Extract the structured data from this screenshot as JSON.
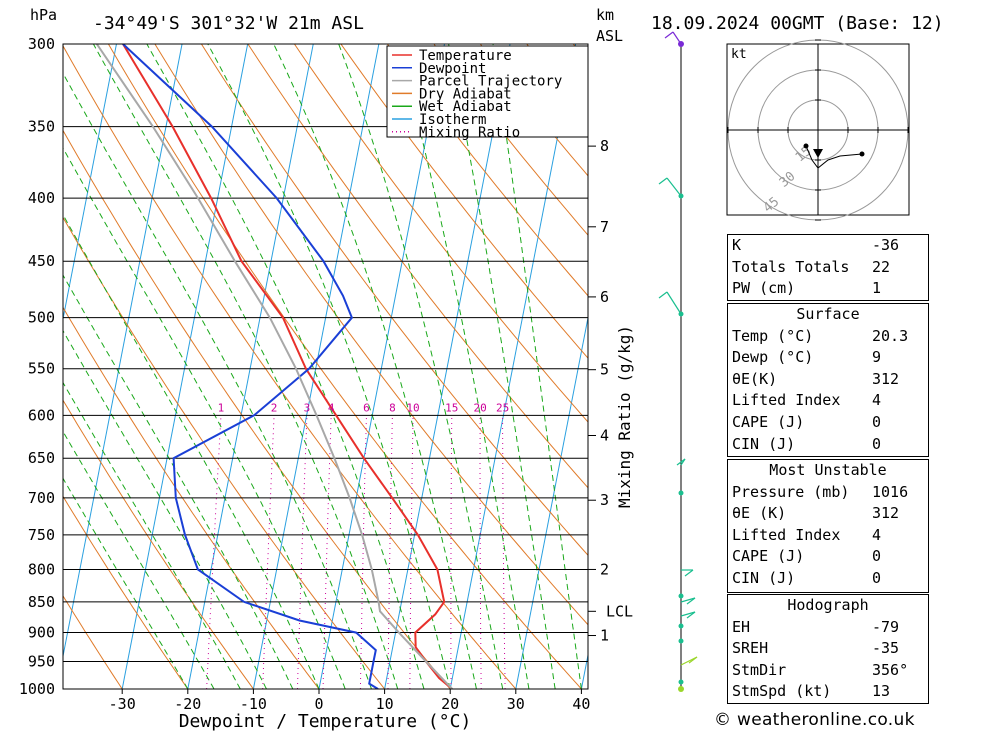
{
  "header": {
    "hpa_label": "hPa",
    "location": "-34°49'S 301°32'W 21m ASL",
    "km_label": "km",
    "asl_label": "ASL",
    "datetime": "18.09.2024 00GMT (Base: 12)"
  },
  "chart_data": {
    "type": "skew-t log-p",
    "xlabel": "Dewpoint / Temperature (°C)",
    "ylabel_left": "hPa",
    "ylabel_right": "Mixing Ratio (g/kg)",
    "pressure_levels": [
      300,
      350,
      400,
      450,
      500,
      550,
      600,
      650,
      700,
      750,
      800,
      850,
      900,
      950,
      1000
    ],
    "temperature_ticks": [
      -30,
      -20,
      -10,
      0,
      10,
      20,
      30,
      40
    ],
    "altitude_ticks_km": [
      {
        "label": "8",
        "p": 363
      },
      {
        "label": "7",
        "p": 422
      },
      {
        "label": "6",
        "p": 481
      },
      {
        "label": "5",
        "p": 551
      },
      {
        "label": "4",
        "p": 623
      },
      {
        "label": "3",
        "p": 703
      },
      {
        "label": "2",
        "p": 800
      },
      {
        "label": "LCL",
        "p": 865
      },
      {
        "label": "1",
        "p": 905
      }
    ],
    "mixing_ratio_labels": [
      "1",
      "2",
      "3",
      "4",
      "6",
      "8",
      "10",
      "15",
      "20",
      "25"
    ],
    "legend": [
      {
        "name": "Temperature",
        "color": "#e8302b",
        "style": "solid"
      },
      {
        "name": "Dewpoint",
        "color": "#1a3fd6",
        "style": "solid"
      },
      {
        "name": "Parcel Trajectory",
        "color": "#a8a8a8",
        "style": "solid"
      },
      {
        "name": "Dry Adiabat",
        "color": "#e07b2a",
        "style": "solid"
      },
      {
        "name": "Wet Adiabat",
        "color": "#1aa81a",
        "style": "solid"
      },
      {
        "name": "Isotherm",
        "color": "#2aa0e0",
        "style": "solid"
      },
      {
        "name": "Mixing Ratio",
        "color": "#cc0099",
        "style": "dotted"
      }
    ],
    "series": [
      {
        "name": "Temperature",
        "p": [
          1000,
          980,
          950,
          925,
          900,
          870,
          850,
          800,
          750,
          700,
          650,
          600,
          550,
          500,
          450,
          400,
          350,
          300
        ],
        "t": [
          20.3,
          18.0,
          15.5,
          13.5,
          13.0,
          15.5,
          16.5,
          14.5,
          10.5,
          5.5,
          0.0,
          -5.5,
          -11.5,
          -16.5,
          -24.5,
          -31.0,
          -39.0,
          -49.0
        ]
      },
      {
        "name": "Dewpoint",
        "p": [
          1000,
          990,
          975,
          950,
          930,
          900,
          880,
          850,
          800,
          750,
          700,
          650,
          600,
          550,
          500,
          480,
          450,
          400,
          350,
          300
        ],
        "t": [
          9.0,
          7.5,
          7.5,
          7.5,
          7.5,
          4.0,
          -5.0,
          -14.0,
          -22.0,
          -25.0,
          -27.5,
          -29.0,
          -18.0,
          -11.0,
          -6.0,
          -8.0,
          -12.0,
          -21.0,
          -33.0,
          -49.0
        ]
      },
      {
        "name": "Parcel Trajectory",
        "p": [
          1000,
          950,
          900,
          865,
          850,
          800,
          750,
          700,
          650,
          600,
          550,
          500,
          450,
          400,
          350,
          300
        ],
        "t": [
          20.3,
          15.5,
          10.5,
          7.0,
          6.5,
          4.5,
          2.0,
          -1.0,
          -4.5,
          -8.5,
          -13.0,
          -18.5,
          -25.5,
          -33.0,
          -42.0,
          -53.0
        ]
      }
    ],
    "hodograph": {
      "unit_label": "kt",
      "ring_labels": [
        "15",
        "30",
        "45"
      ]
    }
  },
  "indices": {
    "k": {
      "label": "K",
      "value": "-36"
    },
    "tt": {
      "label": "Totals Totals",
      "value": "22"
    },
    "pw": {
      "label": "PW (cm)",
      "value": "1"
    }
  },
  "surface": {
    "title": "Surface",
    "temp": {
      "label": "Temp (°C)",
      "value": "20.3"
    },
    "dewp": {
      "label": "Dewp (°C)",
      "value": "9"
    },
    "thetae": {
      "label": "θE(K)",
      "value": "312"
    },
    "li": {
      "label": "Lifted Index",
      "value": "4"
    },
    "cape": {
      "label": "CAPE (J)",
      "value": "0"
    },
    "cin": {
      "label": "CIN (J)",
      "value": "0"
    }
  },
  "most_unstable": {
    "title": "Most Unstable",
    "pressure": {
      "label": "Pressure (mb)",
      "value": "1016"
    },
    "thetae": {
      "label": "θE (K)",
      "value": "312"
    },
    "li": {
      "label": "Lifted Index",
      "value": "4"
    },
    "cape": {
      "label": "CAPE (J)",
      "value": "0"
    },
    "cin": {
      "label": "CIN (J)",
      "value": "0"
    }
  },
  "hodograph_box": {
    "title": "Hodograph",
    "eh": {
      "label": "EH",
      "value": "-79"
    },
    "sreh": {
      "label": "SREH",
      "value": "-35"
    },
    "stmdir": {
      "label": "StmDir",
      "value": "356°"
    },
    "stmspd": {
      "label": "StmSpd (kt)",
      "value": "13"
    }
  },
  "footer": "© weatheronline.co.uk"
}
